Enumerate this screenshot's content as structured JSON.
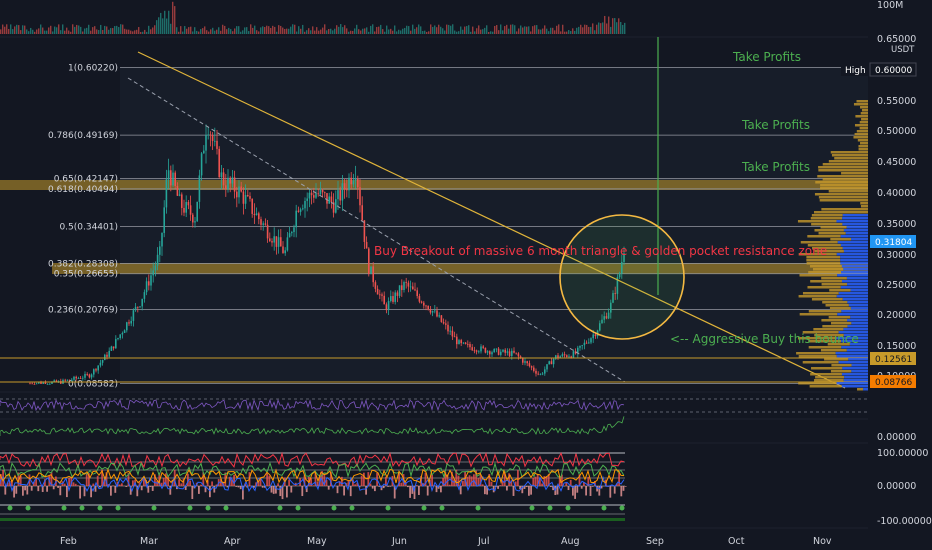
{
  "colors": {
    "background": "#131722",
    "up": "#26a69a",
    "down": "#ef5350",
    "fib_band": "#c79a2a",
    "trendline": "#e0b43a",
    "annotation_green": "#4caf50",
    "annotation_red": "#f23645",
    "vp_gold": "#c79a2a",
    "vp_blue": "#2962ff",
    "current_price_bg": "#2196f3"
  },
  "price_axis": {
    "currency": "USDT",
    "volume_label": "100M",
    "ticks": [
      "0.65000",
      "0.55000",
      "0.50000",
      "0.45000",
      "0.40000",
      "0.35000",
      "0.30000",
      "0.25000",
      "0.20000",
      "0.15000",
      "0.10000"
    ],
    "high_label": "High",
    "high_value": "0.60000",
    "current_price": "0.31804",
    "level_1": "0.12561",
    "level_2": "0.08766"
  },
  "osc_axis": {
    "macd_zero": "0.00000",
    "upper": "100.00000",
    "middle": "0.00000",
    "lower": "-100.00000"
  },
  "time_axis": [
    "Feb",
    "Mar",
    "Apr",
    "May",
    "Jun",
    "Jul",
    "Aug",
    "Sep",
    "Oct",
    "Nov"
  ],
  "fib_levels": [
    {
      "label": "1(0.60220)",
      "price": 0.6022
    },
    {
      "label": "0.786(0.49169)",
      "price": 0.49169
    },
    {
      "label": "0.65(0.42147)",
      "price": 0.42147
    },
    {
      "label": "0.618(0.40494)",
      "price": 0.40494
    },
    {
      "label": "0.5(0.34401)",
      "price": 0.34401
    },
    {
      "label": "0.382(0.28308)",
      "price": 0.28308
    },
    {
      "label": "0.35(0.26655)",
      "price": 0.26655
    },
    {
      "label": "0.236(0.20769)",
      "price": 0.20769
    },
    {
      "label": "0(0.08582)",
      "price": 0.08582
    }
  ],
  "annotations": {
    "take_profits_1": "Take Profits",
    "take_profits_2": "Take Profits",
    "take_profits_3": "Take Profits",
    "breakout": "Buy Breakout of massive 6 month triangle & golden pocket resistance zone",
    "aggressive_buy": "<-- Aggressive Buy this bounce"
  },
  "chart_data": {
    "type": "candlestick",
    "symbol_quote": "USDT",
    "x_labels": [
      "Feb",
      "Mar",
      "Apr",
      "May",
      "Jun",
      "Jul",
      "Aug",
      "Sep",
      "Oct",
      "Nov"
    ],
    "key_points": [
      {
        "month": "Feb",
        "close": 0.09
      },
      {
        "month": "Mar",
        "close": 0.35
      },
      {
        "month": "Apr",
        "close": 0.45
      },
      {
        "month": "May",
        "close": 0.4
      },
      {
        "month": "Jun",
        "close": 0.25
      },
      {
        "month": "Jul",
        "close": 0.14
      },
      {
        "month": "Aug",
        "close": 0.19
      },
      {
        "month": "Aug-end",
        "close": 0.318
      }
    ],
    "high": 0.6,
    "last": 0.31804
  }
}
